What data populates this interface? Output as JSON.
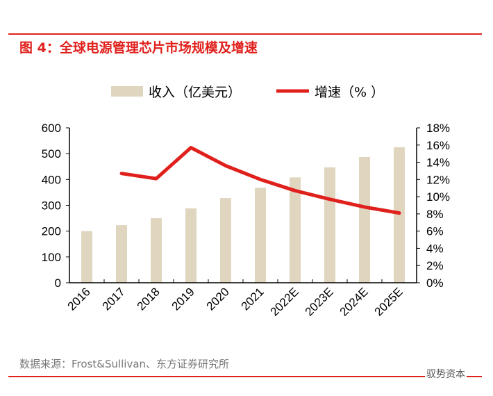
{
  "header": {
    "title": "图 4：全球电源管理芯片市场规模及增速"
  },
  "footer": {
    "source": "数据来源：Frost&Sullivan、东方证券研究所",
    "watermark": "驭势资本"
  },
  "colors": {
    "bar": "#e0d6c0",
    "line": "#e0201c",
    "accent": "#e0201c"
  },
  "chart_data": {
    "type": "bar+line",
    "categories": [
      "2016",
      "2017",
      "2018",
      "2019",
      "2020",
      "2021",
      "2022E",
      "2023E",
      "2024E",
      "2025E"
    ],
    "series": [
      {
        "name": "收入（亿美元）",
        "type": "bar",
        "axis": "left",
        "values": [
          200,
          223,
          250,
          288,
          328,
          368,
          408,
          447,
          487,
          525
        ]
      },
      {
        "name": "增速（%",
        "type": "line",
        "axis": "right",
        "values": [
          null,
          12.7,
          12.1,
          15.7,
          13.6,
          12.0,
          10.7,
          9.7,
          8.8,
          8.1
        ]
      }
    ],
    "left_axis": {
      "ylim": [
        0,
        600
      ],
      "ticks": [
        "0",
        "100",
        "200",
        "300",
        "400",
        "500",
        "600"
      ]
    },
    "right_axis": {
      "ylim": [
        0,
        18
      ],
      "ticks": [
        "0%",
        "2%",
        "4%",
        "6%",
        "8%",
        "10%",
        "12%",
        "14%",
        "16%",
        "18%"
      ]
    },
    "legend": "top",
    "grid": false
  }
}
